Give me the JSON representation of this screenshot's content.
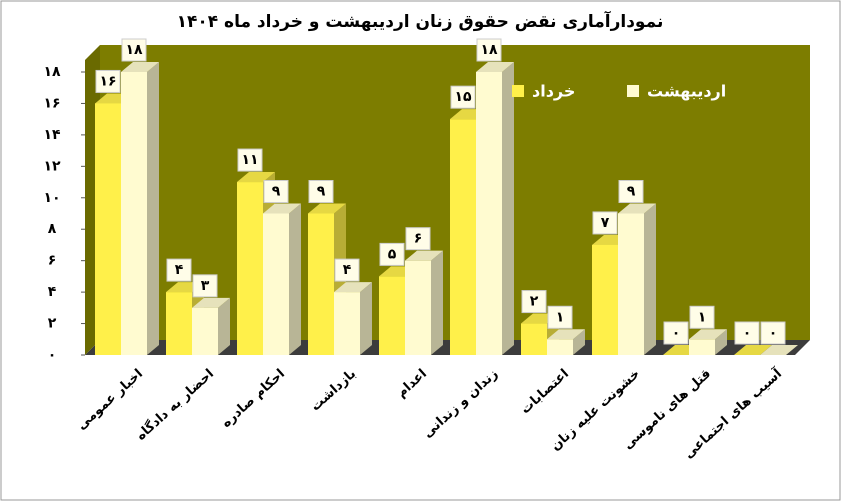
{
  "chart_data": {
    "type": "bar",
    "title": "نمودارآماری نقض حقوق زنان اردیبهشت و خرداد ماه ۱۴۰۴",
    "categories": [
      "اخبار عمومی",
      "احضار به دادگاه",
      "احکام صادره",
      "بازداشت",
      "اعدام",
      "زندان و زندانی",
      "اعتصابات",
      "خشونت علیه زنان",
      "قتل های ناموسی",
      "آسیب های اجتماعی"
    ],
    "series": [
      {
        "name": "خرداد",
        "color": "#fff04a",
        "values": [
          16,
          4,
          11,
          9,
          5,
          15,
          2,
          7,
          0,
          0
        ],
        "value_labels": [
          "۱۶",
          "۴",
          "۱۱",
          "۹",
          "۵",
          "۱۵",
          "۲",
          "۷",
          "۰",
          "۰"
        ]
      },
      {
        "name": "اردیبهشت",
        "color": "#fffbd0",
        "values": [
          18,
          3,
          9,
          4,
          6,
          18,
          1,
          9,
          1,
          0
        ],
        "value_labels": [
          "۱۸",
          "۳",
          "۹",
          "۴",
          "۶",
          "۱۸",
          "۱",
          "۹",
          "۱",
          "۰"
        ]
      }
    ],
    "ylim": [
      0,
      18
    ],
    "yticks": [
      {
        "value": 0,
        "label": "۰"
      },
      {
        "value": 2,
        "label": "۲"
      },
      {
        "value": 4,
        "label": "۴"
      },
      {
        "value": 6,
        "label": "۶"
      },
      {
        "value": 8,
        "label": "۸"
      },
      {
        "value": 10,
        "label": "۱۰"
      },
      {
        "value": 12,
        "label": "۱۲"
      },
      {
        "value": 14,
        "label": "۱۴"
      },
      {
        "value": 16,
        "label": "۱۶"
      },
      {
        "value": 18,
        "label": "۱۸"
      }
    ],
    "legend": "top-right"
  }
}
